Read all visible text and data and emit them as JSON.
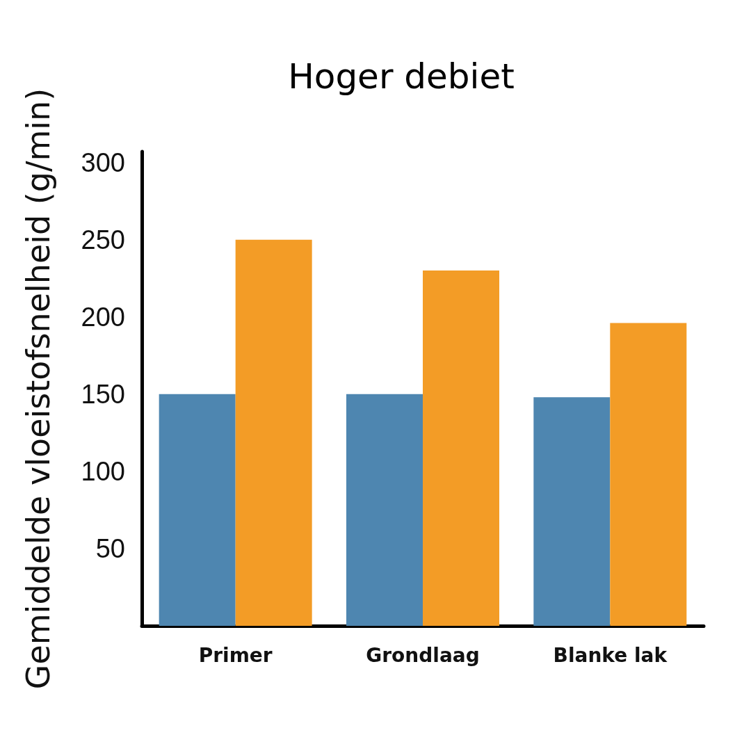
{
  "chart_data": {
    "type": "bar",
    "title": "Hoger debiet",
    "ylabel": "Gemiddelde vloeistofsnelheid (g/min)",
    "categories": [
      "Primer",
      "Grondlaag",
      "Blanke lak"
    ],
    "series": [
      {
        "color": "#4e86b0",
        "values": [
          150,
          150,
          148
        ]
      },
      {
        "color": "#f39c26",
        "values": [
          250,
          230,
          196
        ]
      }
    ],
    "ylim": [
      0,
      307
    ],
    "yticks": [
      50,
      100,
      150,
      200,
      250,
      300
    ]
  }
}
